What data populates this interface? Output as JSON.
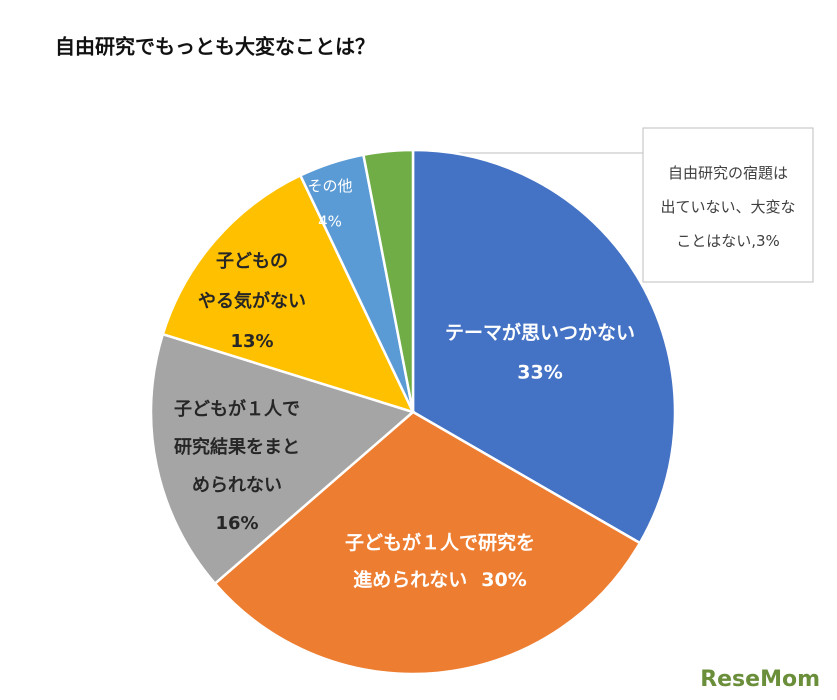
{
  "chart_data": {
    "type": "pie",
    "title": "自由研究でもっとも大変なことは？",
    "categories": [
      [
        "テーマが思いつかない"
      ],
      [
        "子どもが１人で研究を",
        "進められない"
      ],
      [
        "子どもが１人で",
        "研究結果をまと",
        "められない"
      ],
      [
        "子どもの",
        "やる気がない"
      ],
      [
        "その他"
      ],
      [
        "自由研究の宿題は",
        "出ていない、大変な",
        "ことはない,"
      ]
    ],
    "values": [
      33,
      30,
      16,
      13,
      4,
      3
    ],
    "value_labels": [
      "33%",
      "30%",
      "16%",
      "13%",
      "4%",
      "3%"
    ],
    "colors": [
      "#4472c4",
      "#ed7d31",
      "#a5a5a5",
      "#ffc000",
      "#5b9bd5",
      "#70ad47"
    ]
  },
  "watermark": "ReseMom"
}
